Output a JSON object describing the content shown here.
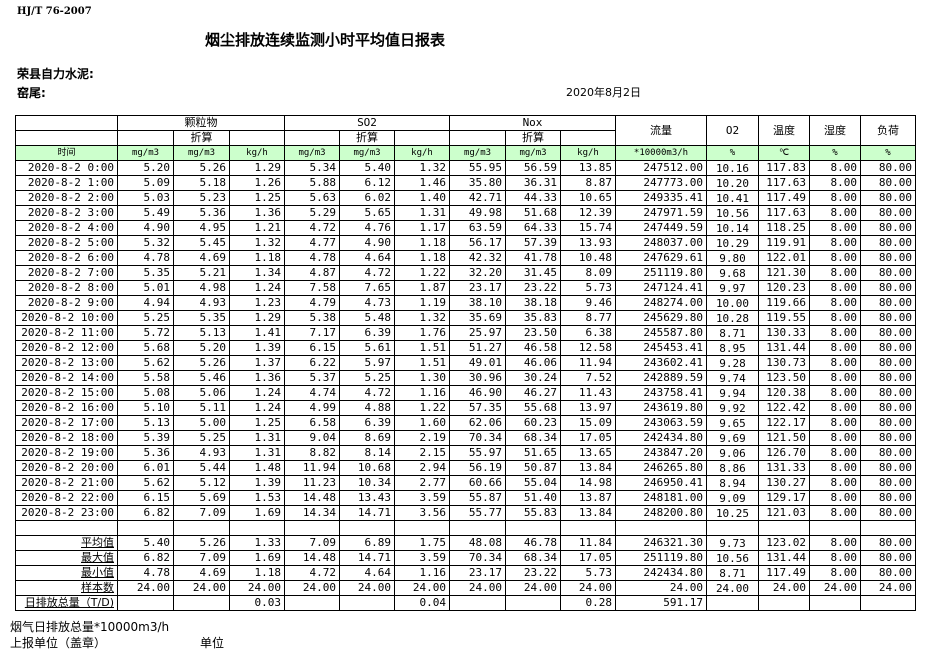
{
  "header": {
    "standard": "HJ/T  76-2007",
    "title": "烟尘排放连续监测小时平均值日报表",
    "company": "荣县自力水泥:",
    "kiln": "窑尾:",
    "date": "2020年8月2日"
  },
  "table": {
    "groups": [
      "颗粒物",
      "SO2",
      "Nox"
    ],
    "converted": "折算",
    "single_cols": [
      "流量",
      "O2",
      "温度",
      "湿度",
      "负荷"
    ],
    "unit_row": [
      "时间",
      "mg/m3",
      "mg/m3",
      "kg/h",
      "mg/m3",
      "mg/m3",
      "kg/h",
      "mg/m3",
      "mg/m3",
      "kg/h",
      "*10000m3/h",
      "%",
      "℃",
      "%",
      "%"
    ],
    "rows": [
      [
        "2020-8-2 0:00",
        "5.20",
        "5.26",
        "1.29",
        "5.34",
        "5.40",
        "1.32",
        "55.95",
        "56.59",
        "13.85",
        "247512.00",
        "10.16",
        "117.83",
        "8.00",
        "80.00"
      ],
      [
        "2020-8-2 1:00",
        "5.09",
        "5.18",
        "1.26",
        "5.88",
        "6.12",
        "1.46",
        "35.80",
        "36.31",
        "8.87",
        "247773.00",
        "10.20",
        "117.63",
        "8.00",
        "80.00"
      ],
      [
        "2020-8-2 2:00",
        "5.03",
        "5.23",
        "1.25",
        "5.63",
        "6.02",
        "1.40",
        "42.71",
        "44.33",
        "10.65",
        "249335.41",
        "10.41",
        "117.49",
        "8.00",
        "80.00"
      ],
      [
        "2020-8-2 3:00",
        "5.49",
        "5.36",
        "1.36",
        "5.29",
        "5.65",
        "1.31",
        "49.98",
        "51.68",
        "12.39",
        "247971.59",
        "10.56",
        "117.63",
        "8.00",
        "80.00"
      ],
      [
        "2020-8-2 4:00",
        "4.90",
        "4.95",
        "1.21",
        "4.72",
        "4.76",
        "1.17",
        "63.59",
        "64.33",
        "15.74",
        "247449.59",
        "10.14",
        "118.25",
        "8.00",
        "80.00"
      ],
      [
        "2020-8-2 5:00",
        "5.32",
        "5.45",
        "1.32",
        "4.77",
        "4.90",
        "1.18",
        "56.17",
        "57.39",
        "13.93",
        "248037.00",
        "10.29",
        "119.91",
        "8.00",
        "80.00"
      ],
      [
        "2020-8-2 6:00",
        "4.78",
        "4.69",
        "1.18",
        "4.78",
        "4.64",
        "1.18",
        "42.32",
        "41.78",
        "10.48",
        "247629.61",
        "9.80",
        "122.01",
        "8.00",
        "80.00"
      ],
      [
        "2020-8-2 7:00",
        "5.35",
        "5.21",
        "1.34",
        "4.87",
        "4.72",
        "1.22",
        "32.20",
        "31.45",
        "8.09",
        "251119.80",
        "9.68",
        "121.30",
        "8.00",
        "80.00"
      ],
      [
        "2020-8-2 8:00",
        "5.01",
        "4.98",
        "1.24",
        "7.58",
        "7.65",
        "1.87",
        "23.17",
        "23.22",
        "5.73",
        "247124.41",
        "9.97",
        "120.23",
        "8.00",
        "80.00"
      ],
      [
        "2020-8-2 9:00",
        "4.94",
        "4.93",
        "1.23",
        "4.79",
        "4.73",
        "1.19",
        "38.10",
        "38.18",
        "9.46",
        "248274.00",
        "10.00",
        "119.66",
        "8.00",
        "80.00"
      ],
      [
        "2020-8-2 10:00",
        "5.25",
        "5.35",
        "1.29",
        "5.38",
        "5.48",
        "1.32",
        "35.69",
        "35.83",
        "8.77",
        "245629.80",
        "10.28",
        "119.55",
        "8.00",
        "80.00"
      ],
      [
        "2020-8-2 11:00",
        "5.72",
        "5.13",
        "1.41",
        "7.17",
        "6.39",
        "1.76",
        "25.97",
        "23.50",
        "6.38",
        "245587.80",
        "8.71",
        "130.33",
        "8.00",
        "80.00"
      ],
      [
        "2020-8-2 12:00",
        "5.68",
        "5.20",
        "1.39",
        "6.15",
        "5.61",
        "1.51",
        "51.27",
        "46.58",
        "12.58",
        "245453.41",
        "8.95",
        "131.44",
        "8.00",
        "80.00"
      ],
      [
        "2020-8-2 13:00",
        "5.62",
        "5.26",
        "1.37",
        "6.22",
        "5.97",
        "1.51",
        "49.01",
        "46.06",
        "11.94",
        "243602.41",
        "9.28",
        "130.73",
        "8.00",
        "80.00"
      ],
      [
        "2020-8-2 14:00",
        "5.58",
        "5.46",
        "1.36",
        "5.37",
        "5.25",
        "1.30",
        "30.96",
        "30.24",
        "7.52",
        "242889.59",
        "9.74",
        "123.50",
        "8.00",
        "80.00"
      ],
      [
        "2020-8-2 15:00",
        "5.08",
        "5.06",
        "1.24",
        "4.74",
        "4.72",
        "1.16",
        "46.90",
        "46.27",
        "11.43",
        "243758.41",
        "9.94",
        "120.38",
        "8.00",
        "80.00"
      ],
      [
        "2020-8-2 16:00",
        "5.10",
        "5.11",
        "1.24",
        "4.99",
        "4.88",
        "1.22",
        "57.35",
        "55.68",
        "13.97",
        "243619.80",
        "9.92",
        "122.42",
        "8.00",
        "80.00"
      ],
      [
        "2020-8-2 17:00",
        "5.13",
        "5.00",
        "1.25",
        "6.58",
        "6.39",
        "1.60",
        "62.06",
        "60.23",
        "15.09",
        "243063.59",
        "9.65",
        "122.17",
        "8.00",
        "80.00"
      ],
      [
        "2020-8-2 18:00",
        "5.39",
        "5.25",
        "1.31",
        "9.04",
        "8.69",
        "2.19",
        "70.34",
        "68.34",
        "17.05",
        "242434.80",
        "9.69",
        "121.50",
        "8.00",
        "80.00"
      ],
      [
        "2020-8-2 19:00",
        "5.36",
        "4.93",
        "1.31",
        "8.82",
        "8.14",
        "2.15",
        "55.97",
        "51.65",
        "13.65",
        "243847.20",
        "9.06",
        "126.70",
        "8.00",
        "80.00"
      ],
      [
        "2020-8-2 20:00",
        "6.01",
        "5.44",
        "1.48",
        "11.94",
        "10.68",
        "2.94",
        "56.19",
        "50.87",
        "13.84",
        "246265.80",
        "8.86",
        "131.33",
        "8.00",
        "80.00"
      ],
      [
        "2020-8-2 21:00",
        "5.62",
        "5.12",
        "1.39",
        "11.23",
        "10.34",
        "2.77",
        "60.66",
        "55.04",
        "14.98",
        "246950.41",
        "8.94",
        "130.27",
        "8.00",
        "80.00"
      ],
      [
        "2020-8-2 22:00",
        "6.15",
        "5.69",
        "1.53",
        "14.48",
        "13.43",
        "3.59",
        "55.87",
        "51.40",
        "13.87",
        "248181.00",
        "9.09",
        "129.17",
        "8.00",
        "80.00"
      ],
      [
        "2020-8-2 23:00",
        "6.82",
        "7.09",
        "1.69",
        "14.34",
        "14.71",
        "3.56",
        "55.77",
        "55.83",
        "13.84",
        "248200.80",
        "10.25",
        "121.03",
        "8.00",
        "80.00"
      ]
    ],
    "stats": [
      [
        "平均值",
        "5.40",
        "5.26",
        "1.33",
        "7.09",
        "6.89",
        "1.75",
        "48.08",
        "46.78",
        "11.84",
        "246321.30",
        "9.73",
        "123.02",
        "8.00",
        "80.00"
      ],
      [
        "最大值",
        "6.82",
        "7.09",
        "1.69",
        "14.48",
        "14.71",
        "3.59",
        "70.34",
        "68.34",
        "17.05",
        "251119.80",
        "10.56",
        "131.44",
        "8.00",
        "80.00"
      ],
      [
        "最小值",
        "4.78",
        "4.69",
        "1.18",
        "4.72",
        "4.64",
        "1.16",
        "23.17",
        "23.22",
        "5.73",
        "242434.80",
        "8.71",
        "117.49",
        "8.00",
        "80.00"
      ],
      [
        "样本数",
        "24.00",
        "24.00",
        "24.00",
        "24.00",
        "24.00",
        "24.00",
        "24.00",
        "24.00",
        "24.00",
        "24.00",
        "24.00",
        "24.00",
        "24.00",
        "24.00"
      ],
      [
        "日排放总量（T/D)",
        "",
        "",
        "0.03",
        "",
        "",
        "0.04",
        "",
        "",
        "0.28",
        "591.17",
        "",
        "",
        "",
        ""
      ]
    ]
  },
  "footer": {
    "flue_total": "烟气日排放总量*10000m3/h",
    "reporter": "上报单位（盖章）",
    "unit": "单位"
  }
}
